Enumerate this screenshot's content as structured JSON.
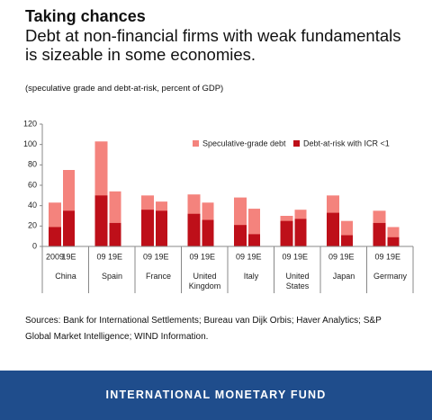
{
  "chart_data": {
    "type": "bar",
    "title": "Taking chances",
    "subtitle": "Debt at non-financial firms with weak fundamentals is sizeable in some economies.",
    "note": "(speculative grade and debt-at-risk, percent of GDP)",
    "categories": [
      "2009",
      "19E",
      "09",
      "19E",
      "09",
      "19E",
      "09",
      "19E",
      "09",
      "19E",
      "09",
      "19E",
      "09",
      "19E",
      "09",
      "19E"
    ],
    "groups": [
      "China",
      "Spain",
      "France",
      "United Kingdom",
      "Italy",
      "United States",
      "Japan",
      "Germany"
    ],
    "series": [
      {
        "name": "Speculative-grade debt",
        "color": "#f4837d",
        "values": [
          43,
          75,
          103,
          54,
          50,
          44,
          51,
          43,
          48,
          37,
          30,
          36,
          50,
          25,
          35,
          19
        ]
      },
      {
        "name": "Debt-at-risk with ICR <1",
        "color": "#be0f19",
        "values": [
          19,
          35,
          50,
          23,
          36,
          35,
          32,
          26,
          21,
          12,
          25,
          27,
          33,
          11,
          23,
          9
        ]
      }
    ],
    "ylim": [
      0,
      120
    ],
    "yticks": [
      0,
      20,
      40,
      60,
      80,
      100,
      120
    ],
    "legend": "top-right",
    "sources": "Sources: Bank for International Settlements; Bureau van Dijk Orbis; Haver Analytics; S&P Global Market Intelligence; WIND Information.",
    "footer": "INTERNATIONAL MONETARY FUND"
  }
}
